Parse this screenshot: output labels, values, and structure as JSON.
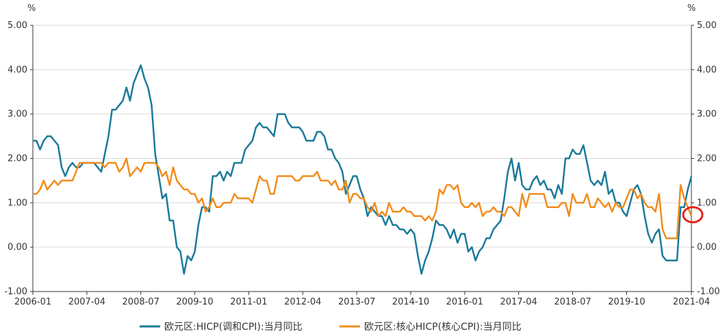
{
  "chart_data": {
    "type": "line",
    "y_unit_left": "%",
    "y_unit_right": "%",
    "ylim": [
      -1,
      5
    ],
    "y_ticks": [
      5,
      4,
      3,
      2,
      1,
      0,
      -1
    ],
    "y_tick_labels": [
      "5.00",
      "4.00",
      "3.00",
      "2.00",
      "1.00",
      "0.00",
      "-1.00"
    ],
    "x_tick_labels": [
      "2006-01",
      "2007-04",
      "2008-07",
      "2009-10",
      "2011-01",
      "2012-04",
      "2013-07",
      "2014-10",
      "2016-01",
      "2017-04",
      "2018-07",
      "2019-10",
      "2021-04"
    ],
    "x_start": "2006-01",
    "x_end": "2021-04",
    "series": [
      {
        "name": "欧元区:HICP(调和CPI):当月同比",
        "color": "#1a7a9a",
        "values": [
          2.4,
          2.4,
          2.2,
          2.4,
          2.5,
          2.5,
          2.4,
          2.3,
          1.8,
          1.6,
          1.8,
          1.9,
          1.8,
          1.8,
          1.9,
          1.9,
          1.9,
          1.9,
          1.8,
          1.7,
          2.1,
          2.5,
          3.1,
          3.1,
          3.2,
          3.3,
          3.6,
          3.3,
          3.7,
          3.9,
          4.1,
          3.8,
          3.6,
          3.2,
          2.1,
          1.6,
          1.1,
          1.2,
          0.6,
          0.6,
          0,
          -0.1,
          -0.6,
          -0.2,
          -0.3,
          -0.1,
          0.5,
          0.9,
          0.9,
          0.8,
          1.6,
          1.6,
          1.7,
          1.5,
          1.7,
          1.6,
          1.9,
          1.9,
          1.9,
          2.2,
          2.3,
          2.4,
          2.7,
          2.8,
          2.7,
          2.7,
          2.6,
          2.5,
          3.0,
          3.0,
          3.0,
          2.8,
          2.7,
          2.7,
          2.7,
          2.6,
          2.4,
          2.4,
          2.4,
          2.6,
          2.6,
          2.5,
          2.2,
          2.2,
          2.0,
          1.9,
          1.7,
          1.2,
          1.4,
          1.6,
          1.6,
          1.3,
          1.1,
          0.7,
          0.9,
          0.8,
          0.7,
          0.7,
          0.5,
          0.7,
          0.5,
          0.5,
          0.4,
          0.4,
          0.3,
          0.4,
          0.3,
          -0.2,
          -0.6,
          -0.3,
          -0.1,
          0.2,
          0.6,
          0.5,
          0.5,
          0.4,
          0.2,
          0.4,
          0.1,
          0.3,
          0.3,
          -0.1,
          0,
          -0.3,
          -0.1,
          0,
          0.2,
          0.2,
          0.4,
          0.5,
          0.6,
          1.1,
          1.7,
          2.0,
          1.5,
          1.9,
          1.4,
          1.3,
          1.3,
          1.5,
          1.6,
          1.4,
          1.5,
          1.3,
          1.3,
          1.1,
          1.4,
          1.2,
          2.0,
          2.0,
          2.2,
          2.1,
          2.1,
          2.3,
          1.9,
          1.5,
          1.4,
          1.5,
          1.4,
          1.7,
          1.2,
          1.3,
          1.0,
          1.0,
          0.8,
          0.7,
          1.0,
          1.3,
          1.4,
          1.2,
          0.7,
          0.3,
          0.1,
          0.3,
          0.4,
          -0.2,
          -0.3,
          -0.3,
          -0.3,
          -0.3,
          0.9,
          0.9,
          1.3,
          1.6
        ]
      },
      {
        "name": "欧元区:核心HICP(核心CPI):当月同比",
        "color": "#f28c1c",
        "values": [
          1.2,
          1.2,
          1.3,
          1.5,
          1.3,
          1.4,
          1.5,
          1.4,
          1.5,
          1.5,
          1.5,
          1.5,
          1.7,
          1.9,
          1.9,
          1.9,
          1.9,
          1.9,
          1.9,
          1.9,
          1.8,
          1.9,
          1.9,
          1.9,
          1.7,
          1.8,
          2.0,
          1.6,
          1.7,
          1.8,
          1.7,
          1.9,
          1.9,
          1.9,
          1.9,
          1.8,
          1.6,
          1.7,
          1.4,
          1.8,
          1.5,
          1.4,
          1.3,
          1.3,
          1.2,
          1.2,
          1.0,
          1.1,
          0.8,
          0.9,
          1.1,
          0.9,
          0.9,
          1.0,
          1.0,
          1.0,
          1.2,
          1.1,
          1.1,
          1.1,
          1.1,
          1.0,
          1.3,
          1.6,
          1.5,
          1.5,
          1.2,
          1.2,
          1.6,
          1.6,
          1.6,
          1.6,
          1.6,
          1.5,
          1.5,
          1.6,
          1.6,
          1.6,
          1.6,
          1.7,
          1.5,
          1.5,
          1.5,
          1.4,
          1.5,
          1.3,
          1.3,
          1.5,
          1.0,
          1.2,
          1.2,
          1.1,
          1.1,
          0.9,
          0.8,
          1.0,
          0.7,
          0.8,
          0.7,
          1.0,
          0.8,
          0.8,
          0.8,
          0.9,
          0.8,
          0.8,
          0.7,
          0.7,
          0.7,
          0.6,
          0.7,
          0.6,
          0.8,
          1.3,
          1.2,
          1.4,
          1.4,
          1.3,
          1.4,
          1.0,
          0.9,
          0.9,
          1.0,
          0.9,
          1.0,
          0.7,
          0.8,
          0.8,
          0.9,
          0.8,
          0.8,
          0.7,
          0.9,
          0.9,
          0.8,
          0.7,
          1.2,
          0.9,
          1.2,
          1.2,
          1.2,
          1.2,
          1.2,
          0.9,
          0.9,
          0.9,
          0.9,
          1.0,
          1.0,
          0.7,
          1.2,
          1.0,
          1.0,
          1.0,
          1.2,
          0.9,
          0.9,
          1.1,
          1.0,
          0.9,
          1.0,
          0.8,
          1.0,
          0.9,
          0.9,
          1.1,
          1.3,
          1.3,
          1.1,
          1.2,
          1.0,
          0.9,
          0.9,
          0.8,
          1.2,
          0.4,
          0.2,
          0.2,
          0.2,
          0.2,
          1.4,
          1.1,
          0.9,
          0.7
        ]
      }
    ],
    "legend_position": "bottom",
    "annotation": {
      "type": "circle",
      "color": "#e8241a"
    }
  }
}
